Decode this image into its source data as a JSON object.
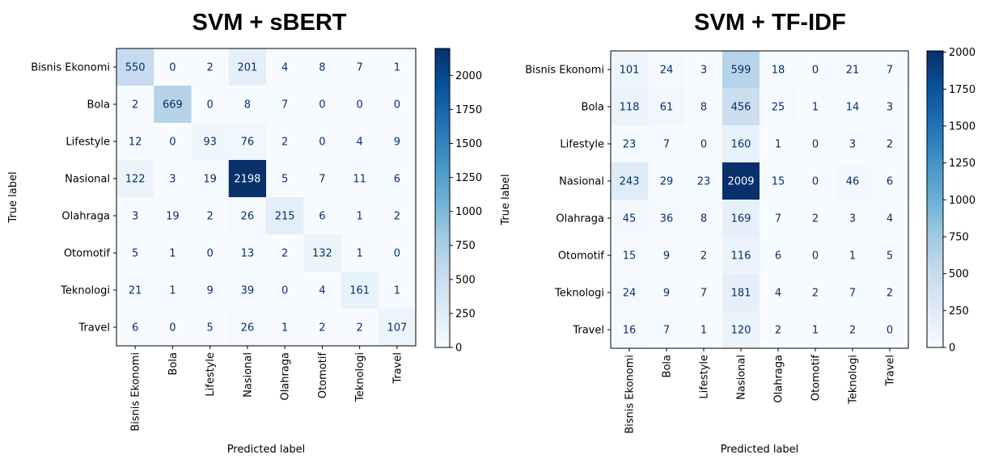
{
  "chart_data": [
    {
      "type": "heatmap",
      "title": "SVM + sBERT",
      "xlabel": "Predicted label",
      "ylabel": "True label",
      "categories": [
        "Bisnis Ekonomi",
        "Bola",
        "Lifestyle",
        "Nasional",
        "Olahraga",
        "Otomotif",
        "Teknologi",
        "Travel"
      ],
      "matrix": [
        [
          550,
          0,
          2,
          201,
          4,
          8,
          7,
          1
        ],
        [
          2,
          669,
          0,
          8,
          7,
          0,
          0,
          0
        ],
        [
          12,
          0,
          93,
          76,
          2,
          0,
          4,
          9
        ],
        [
          122,
          3,
          19,
          2198,
          5,
          7,
          11,
          6
        ],
        [
          3,
          19,
          2,
          26,
          215,
          6,
          1,
          2
        ],
        [
          5,
          1,
          0,
          13,
          2,
          132,
          1,
          0
        ],
        [
          21,
          1,
          9,
          39,
          0,
          4,
          161,
          1
        ],
        [
          6,
          0,
          5,
          26,
          1,
          2,
          2,
          107
        ]
      ],
      "colormap": "Blues",
      "vmin": 0,
      "vmax": 2198,
      "colorbar_ticks": [
        0,
        250,
        500,
        750,
        1000,
        1250,
        1500,
        1750,
        2000
      ],
      "colorbar_position": "right"
    },
    {
      "type": "heatmap",
      "title": "SVM + TF-IDF",
      "xlabel": "Predicted label",
      "ylabel": "True label",
      "categories": [
        "Bisnis Ekonomi",
        "Bola",
        "Lifestyle",
        "Nasional",
        "Olahraga",
        "Otomotif",
        "Teknologi",
        "Travel"
      ],
      "matrix": [
        [
          101,
          24,
          3,
          599,
          18,
          0,
          21,
          7
        ],
        [
          118,
          61,
          8,
          456,
          25,
          1,
          14,
          3
        ],
        [
          23,
          7,
          0,
          160,
          1,
          0,
          3,
          2
        ],
        [
          243,
          29,
          23,
          2009,
          15,
          0,
          46,
          6
        ],
        [
          45,
          36,
          8,
          169,
          7,
          2,
          3,
          4
        ],
        [
          15,
          9,
          2,
          116,
          6,
          0,
          1,
          5
        ],
        [
          24,
          9,
          7,
          181,
          4,
          2,
          7,
          2
        ],
        [
          16,
          7,
          1,
          120,
          2,
          1,
          2,
          0
        ]
      ],
      "colormap": "Blues",
      "vmin": 0,
      "vmax": 2009,
      "colorbar_ticks": [
        0,
        250,
        500,
        750,
        1000,
        1250,
        1500,
        1750,
        2000
      ],
      "colorbar_position": "right"
    }
  ],
  "colors": {
    "cmap_stops": [
      "#f7fbff",
      "#deebf7",
      "#c6dbef",
      "#9ecae1",
      "#6baed6",
      "#4292c6",
      "#2171b5",
      "#08519c",
      "#08306b"
    ],
    "text_dark": "#08306b",
    "text_light": "#f7fbff",
    "axis": "#000000"
  }
}
